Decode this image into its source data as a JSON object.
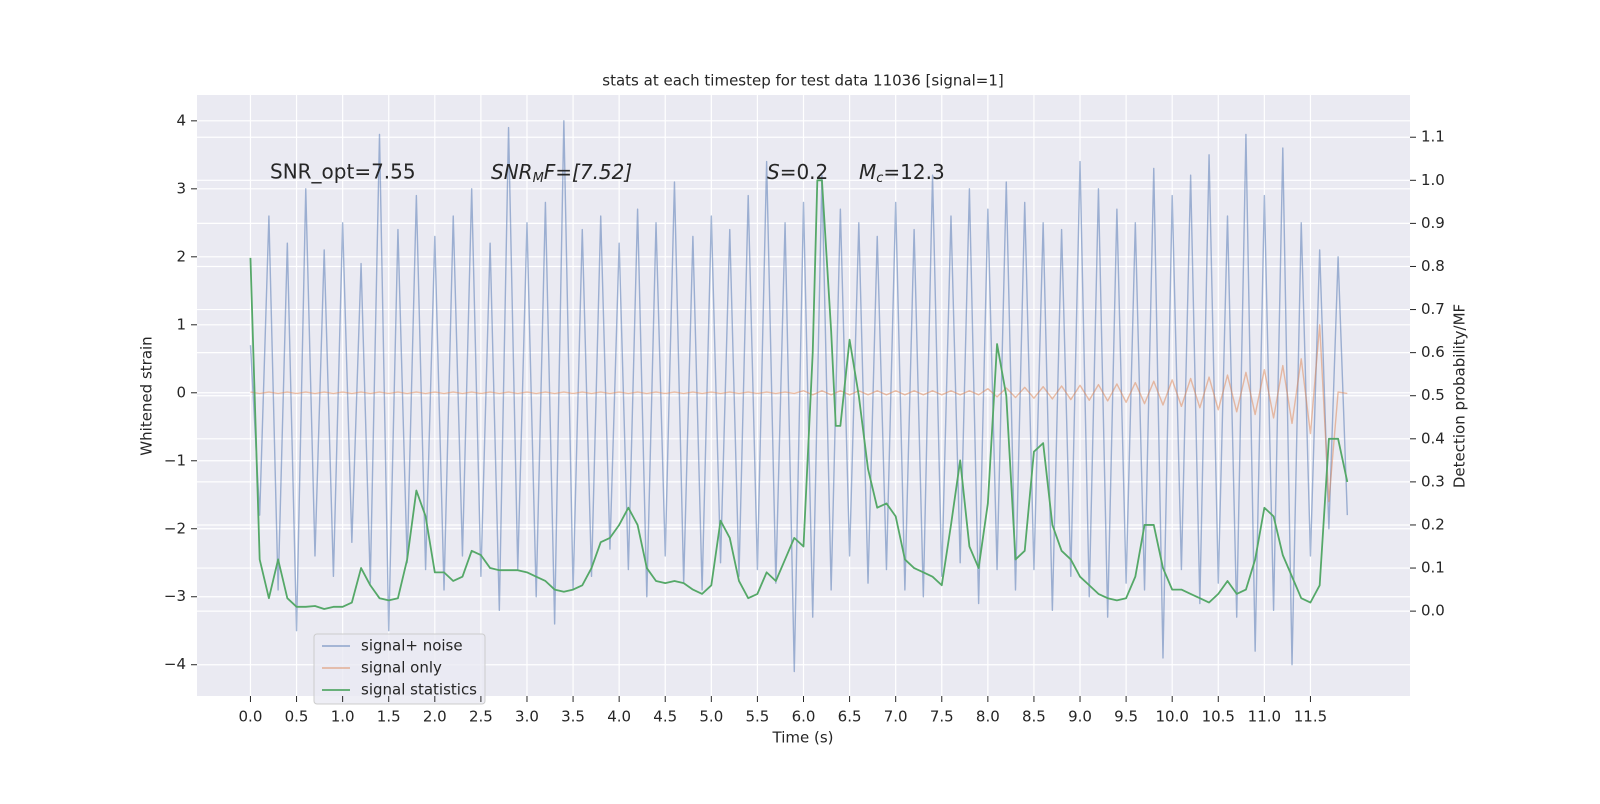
{
  "chart_data": {
    "type": "line",
    "title": "stats at each timestep for test data 11036 [signal=1]",
    "xlabel": "Time (s)",
    "ylabel": "Whitened strain",
    "y2label": "Detection probability/MF",
    "annotations": [
      {
        "text": "SNR_opt=7.55"
      },
      {
        "main": "SNR",
        "sub": "M",
        "rest": "F=[7.52]"
      },
      {
        "main": "S",
        "rest": "=0.2"
      },
      {
        "main": "M",
        "sub": "c",
        "rest": "=12.3"
      }
    ],
    "xlim": [
      -0.58,
      12.58
    ],
    "ylim": [
      -4.46,
      4.38
    ],
    "y2lim": [
      -0.197,
      1.198
    ],
    "xticks": [
      {
        "value": 0,
        "label": "0.0"
      },
      0.5,
      {
        "value": 1,
        "label": "1.0"
      },
      1.5,
      {
        "value": 2,
        "label": "2.0"
      },
      2.5,
      {
        "value": 3,
        "label": "3.0"
      },
      3.5,
      {
        "value": 4,
        "label": "4.0"
      },
      4.5,
      {
        "value": 5,
        "label": "5.0"
      },
      5.5,
      {
        "value": 6,
        "label": "6.0"
      },
      6.5,
      {
        "value": 7,
        "label": "7.0"
      },
      7.5,
      {
        "value": 8,
        "label": "8.0"
      },
      8.5,
      {
        "value": 9,
        "label": "9.0"
      },
      9.5,
      {
        "value": 10,
        "label": "10.0"
      },
      10.5,
      {
        "value": 11,
        "label": "11.0"
      },
      11.5
    ],
    "yticks": [
      {
        "value": -4,
        "label": "−4"
      },
      {
        "value": -3,
        "label": "−3"
      },
      {
        "value": -2,
        "label": "−2"
      },
      {
        "value": -1,
        "label": "−1"
      },
      0,
      1,
      2,
      3,
      4
    ],
    "y2ticks": [
      {
        "value": 0,
        "label": "0.0"
      },
      0.1,
      0.2,
      0.3,
      0.4,
      0.5,
      0.6,
      0.7,
      0.8,
      0.9,
      {
        "value": 1,
        "label": "1.0"
      },
      1.1
    ],
    "grid": true,
    "legend": "lower left",
    "series": [
      {
        "name": "signal+ noise",
        "color": "#4c72b0",
        "x": [
          0,
          0.1,
          0.2,
          0.3,
          0.4,
          0.5,
          0.6,
          0.7,
          0.8,
          0.9,
          1,
          1.1,
          1.2,
          1.3,
          1.4,
          1.5,
          1.6,
          1.7,
          1.8,
          1.9,
          2,
          2.1,
          2.2,
          2.3,
          2.4,
          2.5,
          2.6,
          2.7,
          2.8,
          2.9,
          3,
          3.1,
          3.2,
          3.3,
          3.4,
          3.5,
          3.6,
          3.7,
          3.8,
          3.9,
          4,
          4.1,
          4.2,
          4.3,
          4.4,
          4.5,
          4.6,
          4.7,
          4.8,
          4.9,
          5,
          5.1,
          5.2,
          5.3,
          5.4,
          5.5,
          5.6,
          5.7,
          5.8,
          5.9,
          6,
          6.1,
          6.2,
          6.3,
          6.4,
          6.5,
          6.6,
          6.7,
          6.8,
          6.9,
          7,
          7.1,
          7.2,
          7.3,
          7.4,
          7.5,
          7.6,
          7.7,
          7.8,
          7.9,
          8,
          8.1,
          8.2,
          8.3,
          8.4,
          8.5,
          8.6,
          8.7,
          8.8,
          8.9,
          9,
          9.1,
          9.2,
          9.3,
          9.4,
          9.5,
          9.6,
          9.7,
          9.8,
          9.9,
          10,
          10.1,
          10.2,
          10.3,
          10.4,
          10.5,
          10.6,
          10.7,
          10.8,
          10.9,
          11,
          11.1,
          11.2,
          11.3,
          11.4,
          11.5,
          11.6,
          11.7,
          11.8,
          11.9
        ],
        "values": [
          0.7,
          -1.8,
          2.6,
          -2.9,
          2.2,
          -3.5,
          3.0,
          -2.4,
          2.1,
          -2.7,
          2.5,
          -2.2,
          1.9,
          -2.8,
          3.8,
          -3.5,
          2.4,
          -2.5,
          2.9,
          -2.6,
          2.3,
          -2.9,
          2.6,
          -2.4,
          3.0,
          -2.7,
          2.2,
          -3.2,
          3.9,
          -2.6,
          2.5,
          -3.0,
          2.8,
          -3.4,
          4.0,
          -2.9,
          2.4,
          -2.7,
          2.6,
          -2.3,
          2.2,
          -2.6,
          2.7,
          -3.0,
          2.5,
          -2.4,
          3.1,
          -2.8,
          2.3,
          -2.9,
          2.6,
          -2.5,
          2.4,
          -2.7,
          2.9,
          -2.6,
          3.4,
          -2.8,
          2.5,
          -4.1,
          2.8,
          -3.3,
          3.2,
          -2.9,
          2.7,
          -2.4,
          2.5,
          -2.8,
          2.3,
          -2.6,
          2.8,
          -2.9,
          2.4,
          -3.0,
          3.2,
          -2.7,
          2.6,
          -2.5,
          3.0,
          -3.1,
          2.7,
          -2.6,
          3.1,
          -2.9,
          2.8,
          -2.6,
          2.5,
          -3.2,
          2.4,
          -2.7,
          3.4,
          -3.0,
          3.0,
          -3.3,
          2.7,
          -2.8,
          2.5,
          -2.9,
          3.3,
          -3.9,
          2.9,
          -2.6,
          3.2,
          -3.1,
          3.5,
          -2.8,
          2.6,
          -3.3,
          3.8,
          -3.8,
          2.9,
          -3.2,
          3.6,
          -4.0,
          2.5,
          -2.4,
          2.1,
          -2.0,
          2.0,
          -1.8
        ]
      },
      {
        "name": "signal only",
        "color": "#dd8452",
        "x": [
          0,
          0.1,
          0.2,
          0.3,
          0.4,
          0.5,
          0.6,
          0.7,
          0.8,
          0.9,
          1,
          1.1,
          1.2,
          1.3,
          1.4,
          1.5,
          1.6,
          1.7,
          1.8,
          1.9,
          2,
          2.1,
          2.2,
          2.3,
          2.4,
          2.5,
          2.6,
          2.7,
          2.8,
          2.9,
          3,
          3.1,
          3.2,
          3.3,
          3.4,
          3.5,
          3.6,
          3.7,
          3.8,
          3.9,
          4,
          4.1,
          4.2,
          4.3,
          4.4,
          4.5,
          4.6,
          4.7,
          4.8,
          4.9,
          5,
          5.1,
          5.2,
          5.3,
          5.4,
          5.5,
          5.6,
          5.7,
          5.8,
          5.9,
          6,
          6.1,
          6.2,
          6.3,
          6.4,
          6.5,
          6.6,
          6.7,
          6.8,
          6.9,
          7,
          7.1,
          7.2,
          7.3,
          7.4,
          7.5,
          7.6,
          7.7,
          7.8,
          7.9,
          8,
          8.1,
          8.2,
          8.3,
          8.4,
          8.5,
          8.6,
          8.7,
          8.8,
          8.9,
          9,
          9.1,
          9.2,
          9.3,
          9.4,
          9.5,
          9.6,
          9.7,
          9.8,
          9.9,
          10,
          10.1,
          10.2,
          10.3,
          10.4,
          10.5,
          10.6,
          10.7,
          10.8,
          10.9,
          11,
          11.1,
          11.2,
          11.3,
          11.4,
          11.5,
          11.6,
          11.7,
          11.8,
          11.9
        ],
        "values": [
          0.01,
          -0.01,
          0.01,
          -0.01,
          0.01,
          -0.01,
          0.01,
          -0.01,
          0.01,
          -0.01,
          0.01,
          -0.01,
          0.01,
          -0.01,
          0.01,
          -0.01,
          0.01,
          -0.01,
          0.01,
          -0.01,
          0.01,
          -0.01,
          0.01,
          -0.01,
          0.01,
          -0.01,
          0.01,
          -0.01,
          0.01,
          -0.01,
          0.01,
          -0.01,
          0.01,
          -0.01,
          0.01,
          -0.01,
          0.01,
          -0.01,
          0.01,
          -0.01,
          0.01,
          -0.01,
          0.01,
          -0.01,
          0.01,
          -0.01,
          0.01,
          -0.01,
          0.01,
          -0.01,
          0.01,
          -0.01,
          0.01,
          -0.01,
          0.01,
          -0.01,
          0.01,
          -0.01,
          0.01,
          -0.01,
          0.03,
          -0.03,
          0.03,
          -0.03,
          0.03,
          -0.03,
          0.03,
          -0.03,
          0.03,
          -0.03,
          0.03,
          -0.03,
          0.03,
          -0.03,
          0.03,
          -0.03,
          0.03,
          -0.03,
          0.03,
          -0.03,
          0.06,
          -0.06,
          0.07,
          -0.07,
          0.08,
          -0.08,
          0.09,
          -0.09,
          0.1,
          -0.1,
          0.11,
          -0.11,
          0.12,
          -0.12,
          0.13,
          -0.14,
          0.15,
          -0.16,
          0.17,
          -0.18,
          0.19,
          -0.2,
          0.21,
          -0.22,
          0.23,
          -0.25,
          0.26,
          -0.28,
          0.3,
          -0.32,
          0.34,
          -0.37,
          0.4,
          -0.45,
          0.5,
          -0.6,
          1.0,
          -1.6,
          0.01,
          -0.01
        ]
      },
      {
        "name": "signal statistics",
        "color": "#55a868",
        "axis": "y2",
        "x": [
          0,
          0.1,
          0.2,
          0.3,
          0.4,
          0.5,
          0.6,
          0.7,
          0.8,
          0.9,
          1,
          1.1,
          1.2,
          1.3,
          1.4,
          1.5,
          1.6,
          1.7,
          1.8,
          1.9,
          2,
          2.1,
          2.2,
          2.3,
          2.4,
          2.5,
          2.6,
          2.7,
          2.8,
          2.9,
          3,
          3.1,
          3.2,
          3.3,
          3.4,
          3.5,
          3.6,
          3.7,
          3.8,
          3.9,
          4,
          4.1,
          4.2,
          4.3,
          4.4,
          4.5,
          4.6,
          4.7,
          4.8,
          4.9,
          5,
          5.1,
          5.2,
          5.3,
          5.4,
          5.5,
          5.6,
          5.7,
          5.8,
          5.9,
          6,
          6.1,
          6.15,
          6.2,
          6.3,
          6.35,
          6.4,
          6.5,
          6.6,
          6.7,
          6.8,
          6.9,
          7,
          7.1,
          7.2,
          7.3,
          7.4,
          7.5,
          7.6,
          7.7,
          7.8,
          7.9,
          8,
          8.1,
          8.2,
          8.3,
          8.4,
          8.5,
          8.6,
          8.7,
          8.8,
          8.9,
          9,
          9.1,
          9.2,
          9.3,
          9.4,
          9.5,
          9.6,
          9.7,
          9.8,
          9.9,
          10,
          10.1,
          10.2,
          10.3,
          10.4,
          10.5,
          10.6,
          10.7,
          10.8,
          10.9,
          11,
          11.1,
          11.2,
          11.3,
          11.4,
          11.5,
          11.6,
          11.7,
          11.8,
          11.9
        ],
        "values": [
          0.82,
          0.12,
          0.03,
          0.12,
          0.03,
          0.01,
          0.01,
          0.012,
          0.005,
          0.01,
          0.01,
          0.02,
          0.1,
          0.06,
          0.03,
          0.025,
          0.03,
          0.12,
          0.28,
          0.22,
          0.09,
          0.09,
          0.07,
          0.08,
          0.14,
          0.13,
          0.1,
          0.095,
          0.095,
          0.095,
          0.09,
          0.08,
          0.07,
          0.05,
          0.045,
          0.05,
          0.06,
          0.1,
          0.16,
          0.17,
          0.2,
          0.24,
          0.2,
          0.1,
          0.07,
          0.065,
          0.07,
          0.065,
          0.05,
          0.04,
          0.06,
          0.21,
          0.17,
          0.07,
          0.03,
          0.04,
          0.09,
          0.07,
          0.12,
          0.17,
          0.15,
          0.6,
          1.0,
          1.0,
          0.65,
          0.43,
          0.43,
          0.63,
          0.5,
          0.33,
          0.24,
          0.25,
          0.22,
          0.12,
          0.1,
          0.09,
          0.08,
          0.06,
          0.2,
          0.35,
          0.15,
          0.1,
          0.25,
          0.62,
          0.5,
          0.12,
          0.14,
          0.37,
          0.39,
          0.2,
          0.14,
          0.12,
          0.08,
          0.06,
          0.04,
          0.03,
          0.025,
          0.03,
          0.08,
          0.2,
          0.2,
          0.1,
          0.05,
          0.05,
          0.04,
          0.03,
          0.02,
          0.04,
          0.07,
          0.04,
          0.05,
          0.12,
          0.24,
          0.22,
          0.13,
          0.08,
          0.03,
          0.02,
          0.06,
          0.4,
          0.4,
          0.3
        ]
      }
    ]
  }
}
